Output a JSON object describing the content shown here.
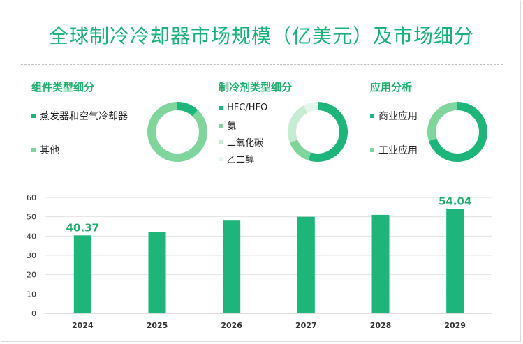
{
  "title": "全球制冷冷却器市场规模（亿美元）及市场细分",
  "sections": [
    {
      "title": "组件类型细分",
      "items": [
        {
          "label": "蒸发器和空气冷却器",
          "value": 12,
          "color": "#1db57a"
        },
        {
          "label": "其他",
          "value": 88,
          "color": "#7fd59c"
        }
      ]
    },
    {
      "title": "制冷剂类型细分",
      "items": [
        {
          "label": "HFC/HFO",
          "value": 55,
          "color": "#1db57a"
        },
        {
          "label": "氨",
          "value": 14,
          "color": "#7fd59c"
        },
        {
          "label": "二氧化碳",
          "value": 23,
          "color": "#c6ecd3"
        },
        {
          "label": "乙二醇",
          "value": 8,
          "color": "#e6f5ec"
        }
      ]
    },
    {
      "title": "应用分析",
      "items": [
        {
          "label": "商业应用",
          "value": 70,
          "color": "#1db57a"
        },
        {
          "label": "工业应用",
          "value": 30,
          "color": "#7fd59c"
        }
      ]
    }
  ],
  "chart_data": {
    "type": "bar",
    "categories": [
      "2024",
      "2025",
      "2026",
      "2027",
      "2028",
      "2029"
    ],
    "values": [
      40.37,
      42,
      48,
      50,
      51,
      54.04
    ],
    "data_labels": [
      "40.37",
      "",
      "",
      "",
      "",
      "54.04"
    ],
    "ylim": [
      0,
      60
    ],
    "yticks": [
      0,
      10,
      20,
      30,
      40,
      50,
      60
    ],
    "bar_color": "#1db57a",
    "grid": true
  }
}
